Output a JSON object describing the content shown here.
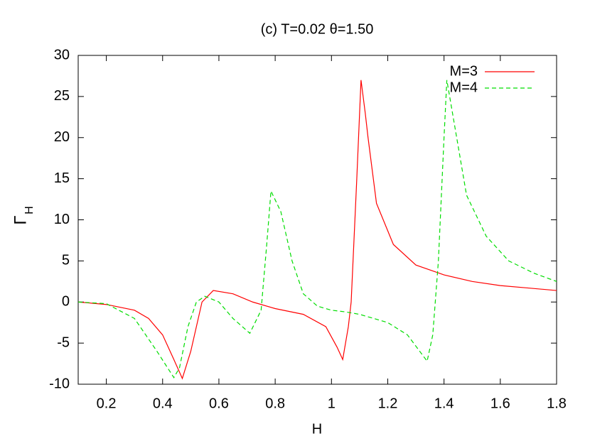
{
  "chart_data": {
    "type": "line",
    "title": "(c) T=0.02 θ=1.50",
    "xlabel": "H",
    "ylabel": "Γ",
    "ylabel_subscript": "H",
    "xlim": [
      0.1,
      1.8
    ],
    "ylim": [
      -10,
      30
    ],
    "xticks": [
      0.2,
      0.4,
      0.6,
      0.8,
      1,
      1.2,
      1.4,
      1.6,
      1.8
    ],
    "yticks": [
      -10,
      -5,
      0,
      5,
      10,
      15,
      20,
      25,
      30
    ],
    "legend": "top-right",
    "series": [
      {
        "name": "M=3",
        "color": "#ff0000",
        "dash": false,
        "x": [
          0.1,
          0.2,
          0.3,
          0.35,
          0.4,
          0.44,
          0.47,
          0.5,
          0.54,
          0.58,
          0.65,
          0.72,
          0.8,
          0.9,
          0.98,
          1.02,
          1.04,
          1.06,
          1.07,
          1.09,
          1.105,
          1.12,
          1.13,
          1.16,
          1.22,
          1.3,
          1.4,
          1.5,
          1.6,
          1.7,
          1.8
        ],
        "values": [
          0,
          -0.3,
          -1,
          -2,
          -4,
          -7,
          -9.3,
          -6,
          0,
          1.4,
          1,
          0,
          -0.8,
          -1.5,
          -3,
          -5.5,
          -7,
          -3,
          0,
          15,
          27,
          23,
          20,
          12,
          7,
          4.5,
          3.3,
          2.5,
          2,
          1.7,
          1.4
        ]
      },
      {
        "name": "M=4",
        "color": "#00dd00",
        "dash": true,
        "x": [
          0.1,
          0.2,
          0.3,
          0.38,
          0.44,
          0.46,
          0.49,
          0.52,
          0.55,
          0.6,
          0.65,
          0.71,
          0.75,
          0.77,
          0.785,
          0.82,
          0.86,
          0.9,
          0.95,
          1,
          1.05,
          1.1,
          1.2,
          1.27,
          1.34,
          1.36,
          1.38,
          1.4,
          1.41,
          1.44,
          1.48,
          1.55,
          1.63,
          1.72,
          1.8
        ],
        "values": [
          0,
          -0.2,
          -2,
          -6,
          -9.2,
          -8,
          -3,
          0,
          0.7,
          0,
          -2,
          -3.8,
          -1,
          7,
          13.5,
          11,
          5,
          1,
          -0.5,
          -1,
          -1.2,
          -1.5,
          -2.5,
          -4,
          -7.2,
          -4,
          5,
          20,
          27,
          21,
          13,
          8,
          5,
          3.5,
          2.5
        ]
      }
    ]
  }
}
